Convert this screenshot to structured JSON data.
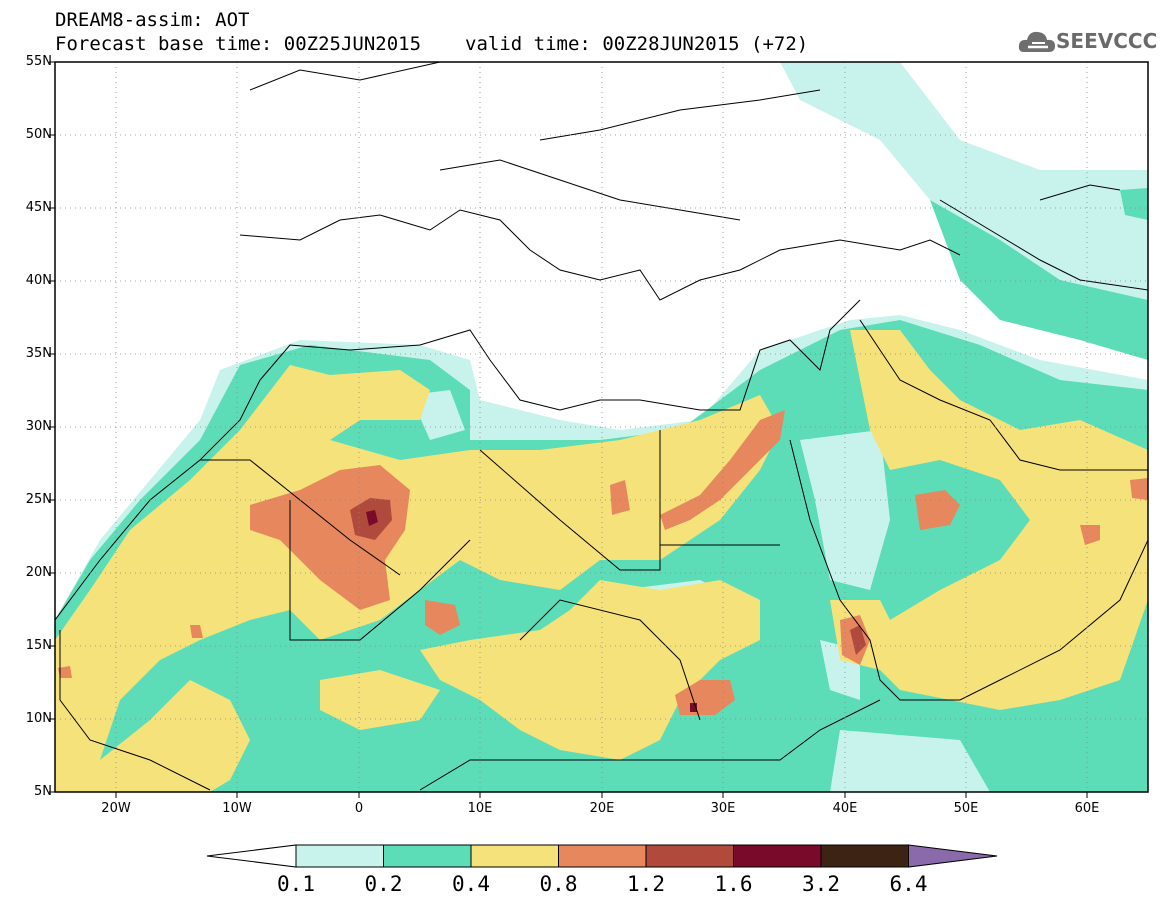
{
  "header": {
    "title": "DREAM8-assim: AOT",
    "base_time": "Forecast base time: 00Z25JUN2015",
    "valid_time": "valid time: 00Z28JUN2015 (+72)",
    "logo_text": "SEEVCCC"
  },
  "map": {
    "lon_range": [
      -25,
      65
    ],
    "lat_range": [
      5,
      55
    ],
    "lat_labels": [
      "55N",
      "50N",
      "45N",
      "40N",
      "35N",
      "30N",
      "25N",
      "20N",
      "15N",
      "10N",
      "5N"
    ],
    "lon_labels": [
      "20W",
      "10W",
      "0",
      "10E",
      "20E",
      "30E",
      "40E",
      "50E",
      "60E"
    ],
    "grid": "dotted"
  },
  "colorbar": {
    "labels": [
      "0.1",
      "0.2",
      "0.4",
      "0.8",
      "1.2",
      "1.6",
      "3.2",
      "6.4"
    ],
    "colors": [
      "#c8f3ec",
      "#5ddcb8",
      "#f6e27a",
      "#e6875e",
      "#b04a3c",
      "#7a0a2a",
      "#3d2314",
      "#8a6aaa"
    ]
  }
}
